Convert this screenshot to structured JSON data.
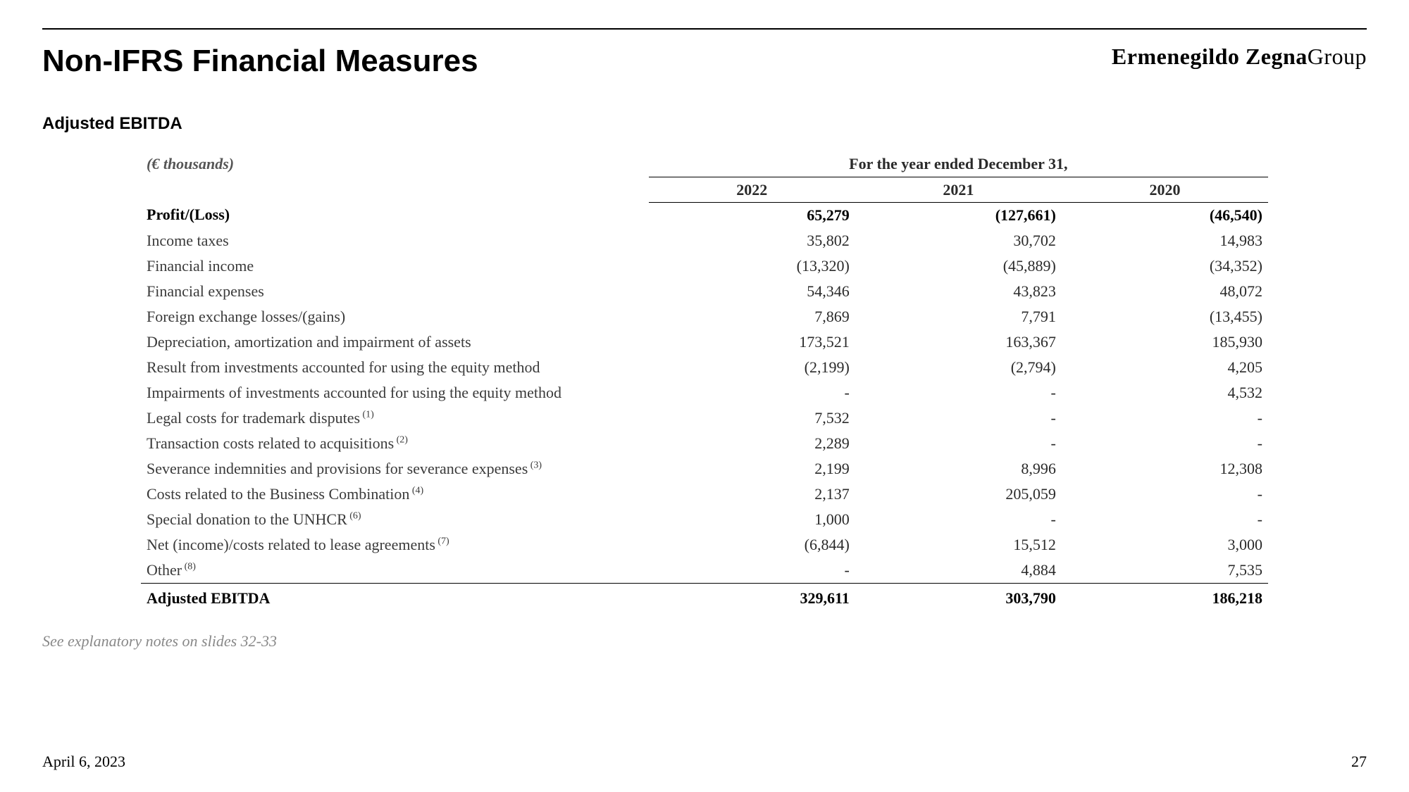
{
  "page": {
    "title": "Non-IFRS Financial Measures",
    "brand_name": "Ermenegildo Zegna",
    "brand_suffix": "Group",
    "subtitle": "Adjusted EBITDA",
    "note": "See explanatory notes on slides 32-33",
    "date": "April 6, 2023",
    "page_number": "27"
  },
  "table": {
    "units": "(€ thousands)",
    "period_header": "For the year ended December 31,",
    "years": [
      "2022",
      "2021",
      "2020"
    ],
    "rows": [
      {
        "label": "Profit/(Loss)",
        "bold": true,
        "values": [
          "65,279",
          "(127,661)",
          "(46,540)"
        ]
      },
      {
        "label": "Income taxes",
        "values": [
          "35,802",
          "30,702",
          "14,983"
        ]
      },
      {
        "label": "Financial income",
        "values": [
          "(13,320)",
          "(45,889)",
          "(34,352)"
        ]
      },
      {
        "label": "Financial expenses",
        "values": [
          "54,346",
          "43,823",
          "48,072"
        ]
      },
      {
        "label": "Foreign exchange losses/(gains)",
        "values": [
          "7,869",
          "7,791",
          "(13,455)"
        ]
      },
      {
        "label": "Depreciation, amortization and impairment of assets",
        "values": [
          "173,521",
          "163,367",
          "185,930"
        ]
      },
      {
        "label": "Result from investments accounted for using the equity method",
        "values": [
          "(2,199)",
          "(2,794)",
          "4,205"
        ]
      },
      {
        "label": "Impairments of investments accounted for using the equity method",
        "values": [
          "-",
          "-",
          "4,532"
        ]
      },
      {
        "label": "Legal costs for trademark disputes",
        "ref": "(1)",
        "values": [
          "7,532",
          "-",
          "-"
        ]
      },
      {
        "label": "Transaction costs related to acquisitions",
        "ref": "(2)",
        "values": [
          "2,289",
          "-",
          "-"
        ]
      },
      {
        "label": "Severance indemnities and provisions for severance expenses",
        "ref": "(3)",
        "values": [
          "2,199",
          "8,996",
          "12,308"
        ]
      },
      {
        "label": "Costs related to the Business Combination",
        "ref": "(4)",
        "values": [
          "2,137",
          "205,059",
          "-"
        ]
      },
      {
        "label": "Special donation to the UNHCR",
        "ref": "(6)",
        "values": [
          "1,000",
          "-",
          "-"
        ]
      },
      {
        "label": "Net (income)/costs related to lease agreements",
        "ref": "(7)",
        "values": [
          "(6,844)",
          "15,512",
          "3,000"
        ]
      },
      {
        "label": "Other",
        "ref": "(8)",
        "values": [
          "-",
          "4,884",
          "7,535"
        ]
      }
    ],
    "total": {
      "label": "Adjusted EBITDA",
      "values": [
        "329,611",
        "303,790",
        "186,218"
      ]
    }
  }
}
